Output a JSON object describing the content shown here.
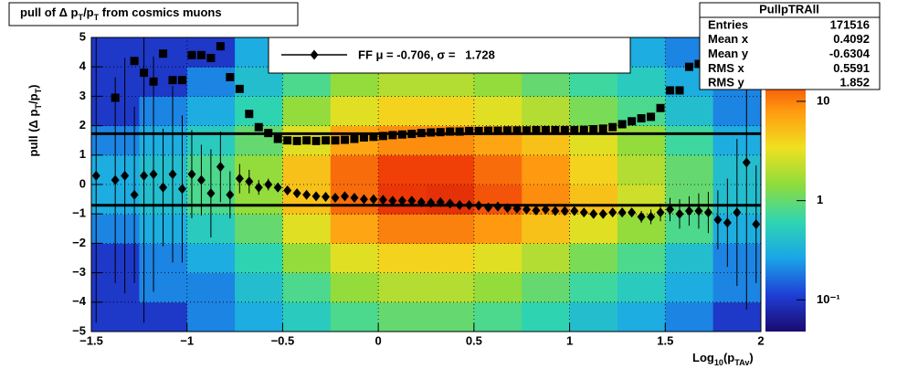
{
  "chart_data": {
    "type": "heatmap",
    "title_parts": [
      "pull of Δ p",
      "T",
      "/p",
      "T",
      " from cosmics muons"
    ],
    "ylabel_parts": [
      "pull (Δ p",
      "T",
      "/p",
      "T",
      ")"
    ],
    "xlabel_parts": [
      "Log",
      "10",
      "(p",
      "TAv",
      ")"
    ],
    "xlim": [
      -1.5,
      2
    ],
    "ylim": [
      -5,
      5
    ],
    "xticks": [
      {
        "value": -1.5,
        "label": "−1.5"
      },
      {
        "value": -1,
        "label": "−1"
      },
      {
        "value": -0.5,
        "label": "−0.5"
      },
      0,
      0.5,
      1,
      1.5,
      2
    ],
    "yticks": [
      {
        "value": -5,
        "label": "−5"
      },
      {
        "value": -4,
        "label": "−4"
      },
      {
        "value": -3,
        "label": "−3"
      },
      {
        "value": -2,
        "label": "−2"
      },
      {
        "value": -1,
        "label": "−1"
      },
      0,
      1,
      2,
      3,
      4,
      5
    ],
    "grid": true,
    "zlim": [
      0.048,
      44
    ],
    "zlog": true,
    "zticks": [
      {
        "value": 0.1,
        "label": "10⁻¹"
      },
      1,
      10
    ],
    "palette": [
      "#1a0a6e",
      "#1f3fd6",
      "#1aa6e8",
      "#2fd6b0",
      "#8fdc3c",
      "#f0e020",
      "#ff9a10",
      "#f03a08",
      "#b00a0a"
    ],
    "heatmap": {
      "xedges": [
        -1.5,
        -1.25,
        -1,
        -0.75,
        -0.5,
        -0.25,
        0,
        0.25,
        0.5,
        0.75,
        1,
        1.25,
        1.5,
        1.75,
        2
      ],
      "yedges": [
        -5,
        -4,
        -3,
        -2,
        -1,
        0,
        1,
        2,
        3,
        4,
        5
      ],
      "z": [
        [
          0.1,
          0.1,
          0.2,
          0.3,
          0.5,
          0.8,
          1,
          1,
          0.8,
          0.6,
          0.4,
          0.3,
          0.2,
          0.1
        ],
        [
          0.1,
          0.2,
          0.2,
          0.4,
          0.8,
          1.5,
          2,
          2,
          1.5,
          1,
          0.7,
          0.5,
          0.3,
          0.2
        ],
        [
          0.1,
          0.2,
          0.3,
          0.6,
          1.5,
          3,
          4,
          4,
          3,
          2,
          1.2,
          0.8,
          0.4,
          0.2
        ],
        [
          0.2,
          0.3,
          0.5,
          1,
          3,
          7,
          10,
          10,
          8,
          5,
          3,
          1.5,
          0.8,
          0.3
        ],
        [
          0.3,
          0.4,
          0.8,
          1.5,
          5,
          12,
          20,
          22,
          15,
          9,
          5,
          2.5,
          1,
          0.4
        ],
        [
          0.3,
          0.4,
          0.8,
          1.5,
          5,
          12,
          18,
          18,
          12,
          8,
          4,
          2,
          1,
          0.4
        ],
        [
          0.2,
          0.3,
          0.5,
          1,
          3,
          7,
          9,
          9,
          7,
          5,
          3,
          1.5,
          0.7,
          0.3
        ],
        [
          0.1,
          0.2,
          0.3,
          0.6,
          1.5,
          3,
          4,
          4,
          3,
          2,
          1.2,
          0.8,
          0.4,
          0.2
        ],
        [
          0.1,
          0.1,
          0.2,
          0.4,
          0.8,
          1.5,
          2,
          2,
          1.5,
          1,
          0.7,
          0.5,
          0.3,
          0.2
        ],
        [
          0.1,
          0.1,
          0.1,
          0.3,
          0.5,
          0.8,
          1,
          1,
          0.8,
          0.6,
          0.4,
          0.3,
          0.2,
          0.1
        ]
      ]
    },
    "x": [
      -1.475,
      -1.425,
      -1.375,
      -1.325,
      -1.275,
      -1.225,
      -1.175,
      -1.125,
      -1.075,
      -1.025,
      -0.975,
      -0.925,
      -0.875,
      -0.825,
      -0.775,
      -0.725,
      -0.675,
      -0.625,
      -0.575,
      -0.525,
      -0.475,
      -0.425,
      -0.375,
      -0.325,
      -0.275,
      -0.225,
      -0.175,
      -0.125,
      -0.075,
      -0.025,
      0.025,
      0.075,
      0.125,
      0.175,
      0.225,
      0.275,
      0.325,
      0.375,
      0.425,
      0.475,
      0.525,
      0.575,
      0.625,
      0.675,
      0.725,
      0.775,
      0.825,
      0.875,
      0.925,
      0.975,
      1.025,
      1.075,
      1.125,
      1.175,
      1.225,
      1.275,
      1.325,
      1.375,
      1.425,
      1.475,
      1.525,
      1.575,
      1.625,
      1.675,
      1.725,
      1.775,
      1.825,
      1.875,
      1.925,
      1.975
    ],
    "series": [
      {
        "marker": "diamond",
        "color": "#000000",
        "values": [
          0.3,
          null,
          0.15,
          0.3,
          -0.35,
          0.3,
          0.35,
          -0.1,
          0.35,
          -0.15,
          0.35,
          0.15,
          -0.3,
          0.6,
          -0.35,
          0.2,
          0.1,
          -0.1,
          0.0,
          -0.1,
          -0.2,
          -0.3,
          -0.35,
          -0.4,
          -0.42,
          -0.45,
          -0.4,
          -0.45,
          -0.5,
          -0.5,
          -0.52,
          -0.55,
          -0.55,
          -0.55,
          -0.6,
          -0.62,
          -0.6,
          -0.65,
          -0.7,
          -0.7,
          -0.72,
          -0.78,
          -0.75,
          -0.8,
          -0.82,
          -0.85,
          -0.88,
          -0.85,
          -0.9,
          -0.9,
          -0.9,
          -0.95,
          -1.0,
          -1.0,
          -0.95,
          -0.95,
          -0.95,
          -1.1,
          -1.1,
          -0.95,
          -0.85,
          -1.0,
          -0.9,
          -0.9,
          -0.95,
          -1.2,
          -1.3,
          -0.95,
          0.75,
          -1.35
        ],
        "errors": [
          5,
          null,
          3.5,
          4,
          3,
          5,
          4,
          2,
          3,
          2.5,
          1.5,
          1.2,
          1.5,
          1.2,
          0.8,
          0.5,
          0.4,
          0.25,
          0.2,
          0.15,
          0.05,
          0.05,
          0.05,
          0.05,
          0.05,
          0.05,
          0.05,
          0.05,
          0.05,
          0.05,
          0.05,
          0.05,
          0.05,
          0.05,
          0.05,
          0.05,
          0.05,
          0.05,
          0.05,
          0.05,
          0.05,
          0.05,
          0.05,
          0.05,
          0.05,
          0.05,
          0.05,
          0.05,
          0.05,
          0.05,
          0.05,
          0.05,
          0.05,
          0.1,
          0.1,
          0.15,
          0.15,
          0.2,
          0.25,
          0.3,
          0.4,
          0.5,
          0.5,
          0.6,
          0.7,
          1.0,
          1.5,
          2.5,
          5,
          2
        ]
      },
      {
        "marker": "square",
        "color": "#000000",
        "values": [
          null,
          null,
          2.95,
          null,
          4.2,
          3.8,
          3.5,
          4.45,
          3.55,
          3.55,
          4.4,
          4.4,
          4.3,
          4.7,
          3.65,
          3.25,
          2.4,
          1.95,
          1.75,
          1.55,
          1.5,
          1.48,
          1.5,
          1.48,
          1.5,
          1.5,
          1.52,
          1.55,
          1.6,
          1.62,
          1.65,
          1.68,
          1.7,
          1.72,
          1.75,
          1.77,
          1.78,
          1.8,
          1.8,
          1.82,
          1.82,
          1.83,
          1.83,
          1.84,
          1.84,
          1.84,
          1.85,
          1.85,
          1.85,
          1.85,
          1.85,
          1.86,
          1.88,
          1.9,
          1.95,
          2.05,
          2.15,
          2.25,
          2.3,
          2.6,
          3.2,
          3.2,
          4.0,
          4.1,
          3.6,
          4.8,
          null,
          null,
          null,
          null
        ]
      }
    ],
    "fit_lines": [
      -0.706,
      1.728
    ],
    "legend_label": "FF μ = -0.706, σ =   1.728",
    "stats": {
      "title": "PullpTRAll",
      "rows": [
        {
          "label": "Entries",
          "value": 171516
        },
        {
          "label": "Mean x",
          "value": 0.4092
        },
        {
          "label": "Mean y",
          "value": -0.6304
        },
        {
          "label": "RMS x",
          "value": 0.5591
        },
        {
          "label": "RMS y",
          "value": 1.852
        }
      ]
    }
  }
}
